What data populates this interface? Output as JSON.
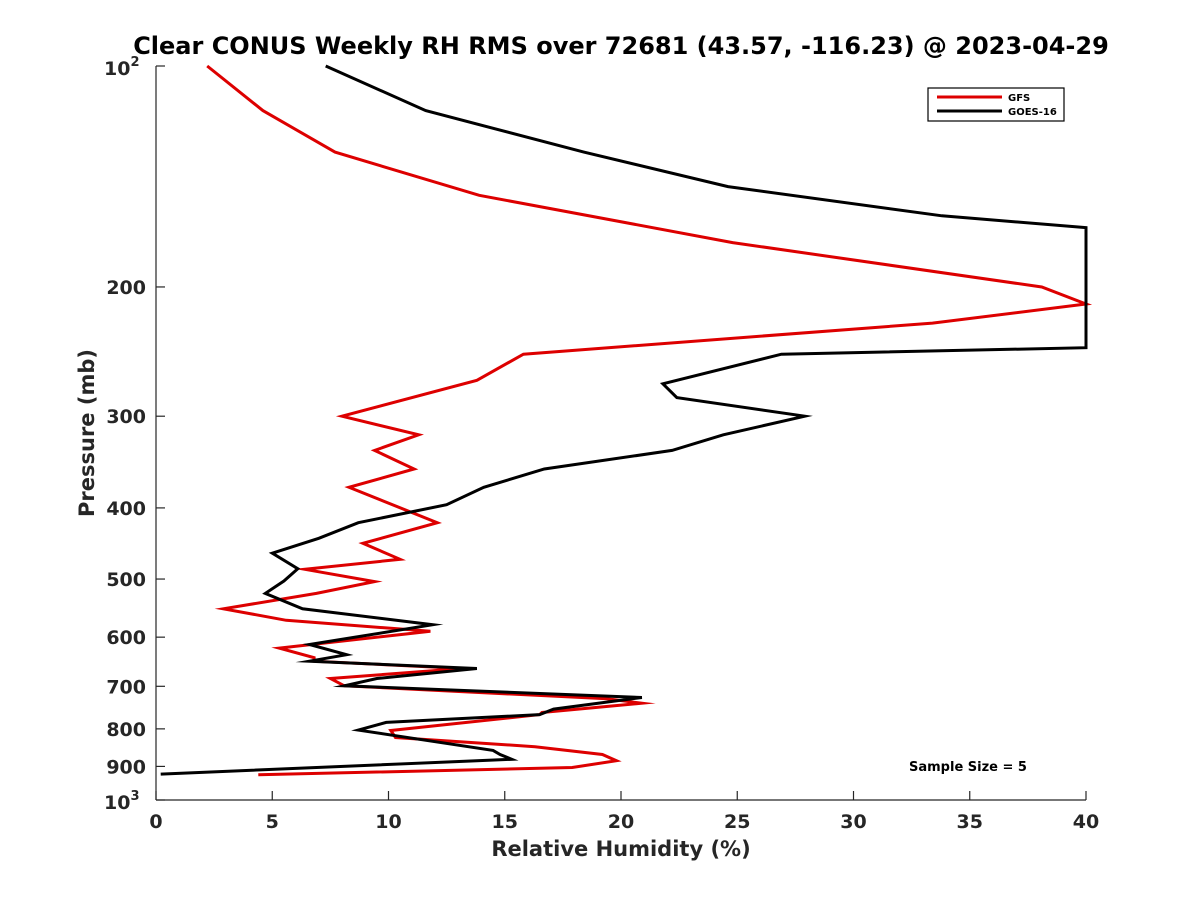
{
  "chart_data": {
    "type": "line",
    "title": "Clear CONUS Weekly RH RMS over 72681 (43.57, -116.23) @ 2023-04-29",
    "xlabel": "Relative Humidity (%)",
    "ylabel": "Pressure (mb)",
    "xlim": [
      0,
      40
    ],
    "ylim": [
      100,
      1000
    ],
    "y_scale": "log",
    "y_reversed": true,
    "x_ticks": [
      "0",
      "5",
      "10",
      "15",
      "20",
      "25",
      "30",
      "35",
      "40"
    ],
    "y_ticks": [
      {
        "value": 100,
        "base": "10",
        "exp": "2"
      },
      {
        "value": 200,
        "label": "200"
      },
      {
        "value": 300,
        "label": "300"
      },
      {
        "value": 400,
        "label": "400"
      },
      {
        "value": 500,
        "label": "500"
      },
      {
        "value": 600,
        "label": "600"
      },
      {
        "value": 700,
        "label": "700"
      },
      {
        "value": 800,
        "label": "800"
      },
      {
        "value": 900,
        "label": "900"
      },
      {
        "value": 1000,
        "base": "10",
        "exp": "3"
      }
    ],
    "grid": false,
    "legend_position": "top-right",
    "annotation": "Sample Size = 5",
    "series": [
      {
        "name": "GFS",
        "color": "#dd0000",
        "points": [
          [
            2.2,
            100
          ],
          [
            4.6,
            115
          ],
          [
            7.7,
            131
          ],
          [
            13.9,
            150
          ],
          [
            24.8,
            174
          ],
          [
            38.1,
            200
          ],
          [
            40,
            211
          ],
          [
            33.4,
            224
          ],
          [
            15.8,
            247
          ],
          [
            13.8,
            268
          ],
          [
            8.0,
            300
          ],
          [
            11.3,
            318
          ],
          [
            9.4,
            334
          ],
          [
            11.1,
            354
          ],
          [
            8.3,
            375
          ],
          [
            12.1,
            419
          ],
          [
            8.9,
            447
          ],
          [
            10.5,
            470
          ],
          [
            6.4,
            485
          ],
          [
            9.4,
            504
          ],
          [
            6.9,
            523
          ],
          [
            2.9,
            549
          ],
          [
            5.6,
            569
          ],
          [
            11.8,
            589
          ],
          [
            5.3,
            621
          ],
          [
            6.8,
            640
          ],
          [
            6.8,
            647
          ],
          [
            13.2,
            662
          ],
          [
            7.5,
            683
          ],
          [
            8.1,
            699
          ],
          [
            19.4,
            728
          ],
          [
            20.9,
            738
          ],
          [
            16.6,
            760
          ],
          [
            16.5,
            765
          ],
          [
            10.1,
            804
          ],
          [
            10.3,
            822
          ],
          [
            16.3,
            846
          ],
          [
            19.2,
            867
          ],
          [
            19.8,
            884
          ],
          [
            17.9,
            903
          ],
          [
            4.4,
            924
          ]
        ]
      },
      {
        "name": "GOES-16",
        "color": "#000000",
        "points": [
          [
            7.3,
            100
          ],
          [
            11.6,
            115
          ],
          [
            18.4,
            131
          ],
          [
            24.6,
            146
          ],
          [
            33.8,
            160
          ],
          [
            40,
            166
          ],
          [
            40,
            242
          ],
          [
            26.9,
            247
          ],
          [
            21.8,
            271
          ],
          [
            22.4,
            283
          ],
          [
            27.9,
            300
          ],
          [
            24.4,
            318
          ],
          [
            22.2,
            334
          ],
          [
            16.7,
            354
          ],
          [
            14.1,
            375
          ],
          [
            12.5,
            396
          ],
          [
            8.7,
            419
          ],
          [
            7.0,
            440
          ],
          [
            5.0,
            461
          ],
          [
            6.1,
            484
          ],
          [
            5.5,
            503
          ],
          [
            4.7,
            523
          ],
          [
            6.3,
            549
          ],
          [
            11.9,
            577
          ],
          [
            6.6,
            614
          ],
          [
            8.2,
            634
          ],
          [
            6.6,
            647
          ],
          [
            13.8,
            662
          ],
          [
            9.5,
            683
          ],
          [
            8.1,
            699
          ],
          [
            20.9,
            725
          ],
          [
            17.1,
            752
          ],
          [
            16.5,
            765
          ],
          [
            9.9,
            784
          ],
          [
            8.7,
            803
          ],
          [
            14.5,
            856
          ],
          [
            14.8,
            867
          ],
          [
            15.3,
            880
          ],
          [
            0.2,
            922
          ]
        ]
      }
    ]
  }
}
